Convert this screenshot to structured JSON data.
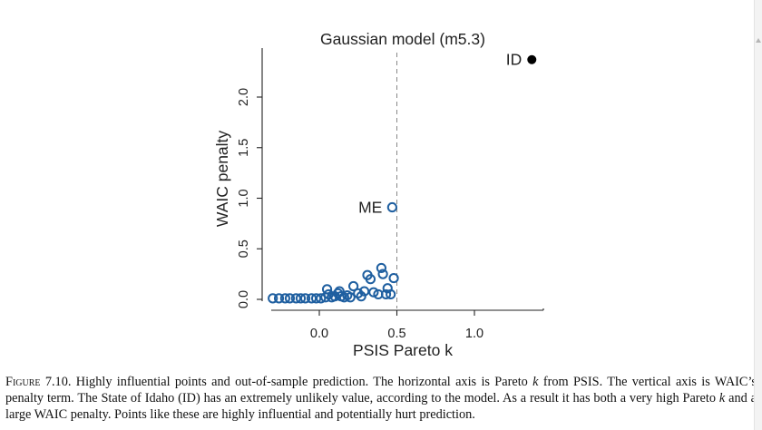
{
  "chart_data": {
    "type": "scatter",
    "title": "Gaussian model (m5.3)",
    "xlabel": "PSIS Pareto k",
    "ylabel": "WAIC penalty",
    "xlim": [
      -0.35,
      1.45
    ],
    "ylim": [
      -0.05,
      2.45
    ],
    "x_ticks": [
      0.0,
      0.5,
      1.0
    ],
    "x_tick_labels": [
      "0.0",
      "0.5",
      "1.0"
    ],
    "y_ticks": [
      0.0,
      0.5,
      1.0,
      1.5,
      2.0
    ],
    "y_tick_labels": [
      "0.0",
      "0.5",
      "1.0",
      "1.5",
      "2.0"
    ],
    "reference_line": {
      "x": 0.5,
      "style": "dashed"
    },
    "grid": false,
    "colors": {
      "open_points": "#1f5fa0",
      "highlight_point": "#000000",
      "reference_line": "#888888"
    },
    "points": [
      {
        "x": -0.3,
        "y": 0.01
      },
      {
        "x": -0.26,
        "y": 0.01
      },
      {
        "x": -0.22,
        "y": 0.01
      },
      {
        "x": -0.19,
        "y": 0.01
      },
      {
        "x": -0.15,
        "y": 0.01
      },
      {
        "x": -0.12,
        "y": 0.01
      },
      {
        "x": -0.09,
        "y": 0.01
      },
      {
        "x": -0.05,
        "y": 0.01
      },
      {
        "x": -0.02,
        "y": 0.01
      },
      {
        "x": 0.01,
        "y": 0.01
      },
      {
        "x": 0.04,
        "y": 0.02
      },
      {
        "x": 0.06,
        "y": 0.05
      },
      {
        "x": 0.05,
        "y": 0.1
      },
      {
        "x": 0.08,
        "y": 0.02
      },
      {
        "x": 0.1,
        "y": 0.03
      },
      {
        "x": 0.12,
        "y": 0.06
      },
      {
        "x": 0.13,
        "y": 0.08
      },
      {
        "x": 0.14,
        "y": 0.03
      },
      {
        "x": 0.16,
        "y": 0.02
      },
      {
        "x": 0.18,
        "y": 0.04
      },
      {
        "x": 0.2,
        "y": 0.02
      },
      {
        "x": 0.22,
        "y": 0.13
      },
      {
        "x": 0.25,
        "y": 0.06
      },
      {
        "x": 0.27,
        "y": 0.03
      },
      {
        "x": 0.29,
        "y": 0.08
      },
      {
        "x": 0.31,
        "y": 0.24
      },
      {
        "x": 0.33,
        "y": 0.2
      },
      {
        "x": 0.35,
        "y": 0.07
      },
      {
        "x": 0.38,
        "y": 0.05
      },
      {
        "x": 0.4,
        "y": 0.31
      },
      {
        "x": 0.41,
        "y": 0.25
      },
      {
        "x": 0.43,
        "y": 0.05
      },
      {
        "x": 0.44,
        "y": 0.11
      },
      {
        "x": 0.46,
        "y": 0.05
      },
      {
        "x": 0.48,
        "y": 0.21
      }
    ],
    "labeled_points": [
      {
        "label": "ME",
        "x": 0.47,
        "y": 0.91,
        "filled": false,
        "label_side": "left"
      },
      {
        "label": "ID",
        "x": 1.37,
        "y": 2.37,
        "filled": true,
        "label_side": "left"
      }
    ]
  },
  "caption": {
    "figure_label": "Figure 7.10.",
    "text_1": "Highly influential points and out-of-sample prediction. The horizontal axis is Pareto",
    "k_1": "k",
    "text_2": "from PSIS. The vertical axis is WAIC’s penalty term. The State of Idaho (ID) has an extremely unlikely value, according to the model. As a result it has both a very high Pareto",
    "k_2": "k",
    "text_3": "and a large WAIC penalty. Points like these are highly influential and potentially hurt prediction."
  }
}
